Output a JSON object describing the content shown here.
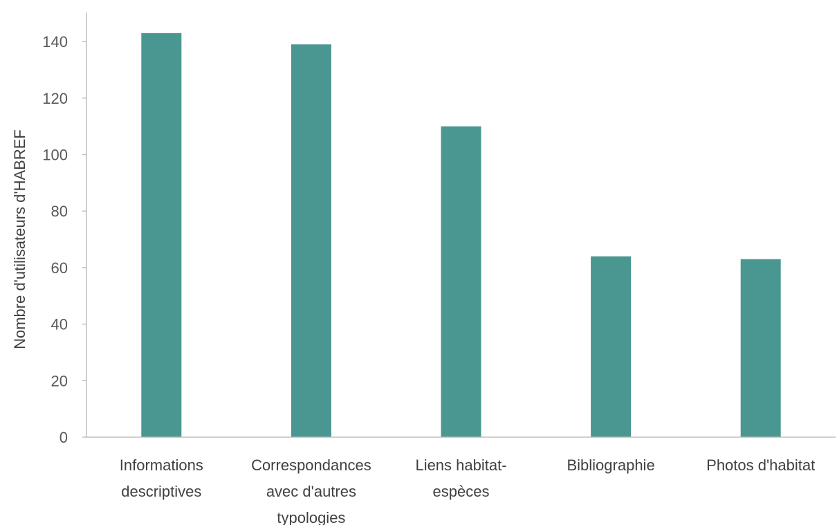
{
  "chart_data": {
    "type": "bar",
    "categories": [
      [
        "Informations",
        "descriptives"
      ],
      [
        "Correspondances",
        "avec d'autres",
        "typologies"
      ],
      [
        "Liens habitat-",
        "espèces"
      ],
      [
        "Bibliographie"
      ],
      [
        "Photos d'habitat"
      ]
    ],
    "values": [
      143,
      139,
      110,
      64,
      63
    ],
    "ylabel": "Nombre d'utilisateurs d'HABREF",
    "xlabel": "",
    "ylim": [
      0,
      140
    ],
    "yticks": [
      0,
      20,
      40,
      60,
      80,
      100,
      120,
      140
    ],
    "grid": false,
    "legend": "none",
    "bar_color": "#4a9792",
    "axis_color": "#bfbfbf"
  }
}
